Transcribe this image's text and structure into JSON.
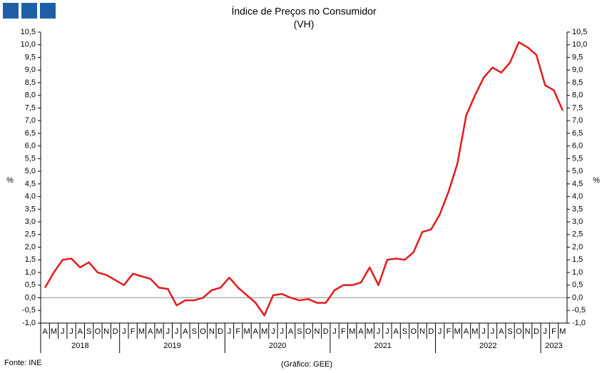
{
  "chart_data": {
    "type": "line",
    "title": "Índice de Preços no Consumidor",
    "subtitle": "(VH)",
    "ylabel": "%",
    "y2label": "%",
    "source": "Fonte: INE",
    "credit": "(Gráfico: GEE)",
    "categories": [
      "A",
      "M",
      "J",
      "J",
      "A",
      "S",
      "O",
      "N",
      "D",
      "J",
      "F",
      "M",
      "A",
      "M",
      "J",
      "J",
      "A",
      "S",
      "O",
      "N",
      "D",
      "J",
      "F",
      "M",
      "A",
      "M",
      "J",
      "J",
      "A",
      "S",
      "O",
      "N",
      "D",
      "J",
      "F",
      "M",
      "A",
      "M",
      "J",
      "J",
      "A",
      "S",
      "O",
      "N",
      "D",
      "J",
      "F",
      "M",
      "A",
      "M",
      "J",
      "J",
      "A",
      "S",
      "O",
      "N",
      "D",
      "J",
      "F",
      "M"
    ],
    "x_groups": [
      "2018",
      "2019",
      "2020",
      "2021",
      "2022",
      "2023"
    ],
    "values": [
      0.4,
      1.0,
      1.5,
      1.55,
      1.2,
      1.4,
      1.0,
      0.9,
      0.7,
      0.5,
      0.95,
      0.85,
      0.75,
      0.4,
      0.35,
      -0.3,
      -0.1,
      -0.1,
      0.0,
      0.3,
      0.4,
      0.8,
      0.4,
      0.1,
      -0.2,
      -0.7,
      0.1,
      0.15,
      0.0,
      -0.1,
      -0.05,
      -0.2,
      -0.2,
      0.3,
      0.5,
      0.5,
      0.6,
      1.2,
      0.5,
      1.5,
      1.55,
      1.5,
      1.8,
      2.6,
      2.7,
      3.3,
      4.2,
      5.3,
      7.2,
      8.0,
      8.7,
      9.1,
      8.9,
      9.3,
      10.1,
      9.9,
      9.6,
      8.4,
      8.2,
      7.4
    ],
    "color": "#e31a1c",
    "ylim": [
      -1.0,
      10.5
    ],
    "y2lim": [
      -1.0,
      10.5
    ],
    "yticks": [
      {
        "value": -1,
        "label": "-1,0"
      },
      {
        "value": -0.5,
        "label": "-0,5"
      },
      {
        "value": 0,
        "label": "0,0"
      },
      {
        "value": 0.5,
        "label": "0,5"
      },
      {
        "value": 1,
        "label": "1,0"
      },
      {
        "value": 1.5,
        "label": "1,5"
      },
      {
        "value": 2,
        "label": "2,0"
      },
      {
        "value": 2.5,
        "label": "2,5"
      },
      {
        "value": 3,
        "label": "3,0"
      },
      {
        "value": 3.5,
        "label": "3,5"
      },
      {
        "value": 4,
        "label": "4,0"
      },
      {
        "value": 4.5,
        "label": "4,5"
      },
      {
        "value": 5,
        "label": "5,0"
      },
      {
        "value": 5.5,
        "label": "5,5"
      },
      {
        "value": 6,
        "label": "6,0"
      },
      {
        "value": 6.5,
        "label": "6,5"
      },
      {
        "value": 7,
        "label": "7,0"
      },
      {
        "value": 7.5,
        "label": "7,5"
      },
      {
        "value": 8,
        "label": "8,0"
      },
      {
        "value": 8.5,
        "label": "8,5"
      },
      {
        "value": 9,
        "label": "9,0"
      },
      {
        "value": 9.5,
        "label": "9,5"
      },
      {
        "value": 10,
        "label": "10,0"
      },
      {
        "value": 10.5,
        "label": "10,5"
      }
    ],
    "y2ticks": [
      {
        "value": -1,
        "label": "-1,0"
      },
      {
        "value": -0.5,
        "label": "-0,5"
      },
      {
        "value": 0,
        "label": "0,0"
      },
      {
        "value": 0.5,
        "label": "0,5"
      },
      {
        "value": 1,
        "label": "1,0"
      },
      {
        "value": 1.5,
        "label": "1,5"
      },
      {
        "value": 2,
        "label": "2,0"
      },
      {
        "value": 2.5,
        "label": "2,5"
      },
      {
        "value": 3,
        "label": "3,0"
      },
      {
        "value": 3.5,
        "label": "3,5"
      },
      {
        "value": 4,
        "label": "4,0"
      },
      {
        "value": 4.5,
        "label": "4,5"
      },
      {
        "value": 5,
        "label": "5,0"
      },
      {
        "value": 5.5,
        "label": "5,5"
      },
      {
        "value": 6,
        "label": "6,0"
      },
      {
        "value": 6.5,
        "label": "6,5"
      },
      {
        "value": 7,
        "label": "7,0"
      },
      {
        "value": 7.5,
        "label": "7,5"
      },
      {
        "value": 8,
        "label": "8,0"
      },
      {
        "value": 8.5,
        "label": "8,5"
      },
      {
        "value": 9,
        "label": "9,0"
      },
      {
        "value": 9.5,
        "label": "9,5"
      },
      {
        "value": 10,
        "label": "10,0"
      },
      {
        "value": 10.5,
        "label": "10,5"
      }
    ]
  }
}
